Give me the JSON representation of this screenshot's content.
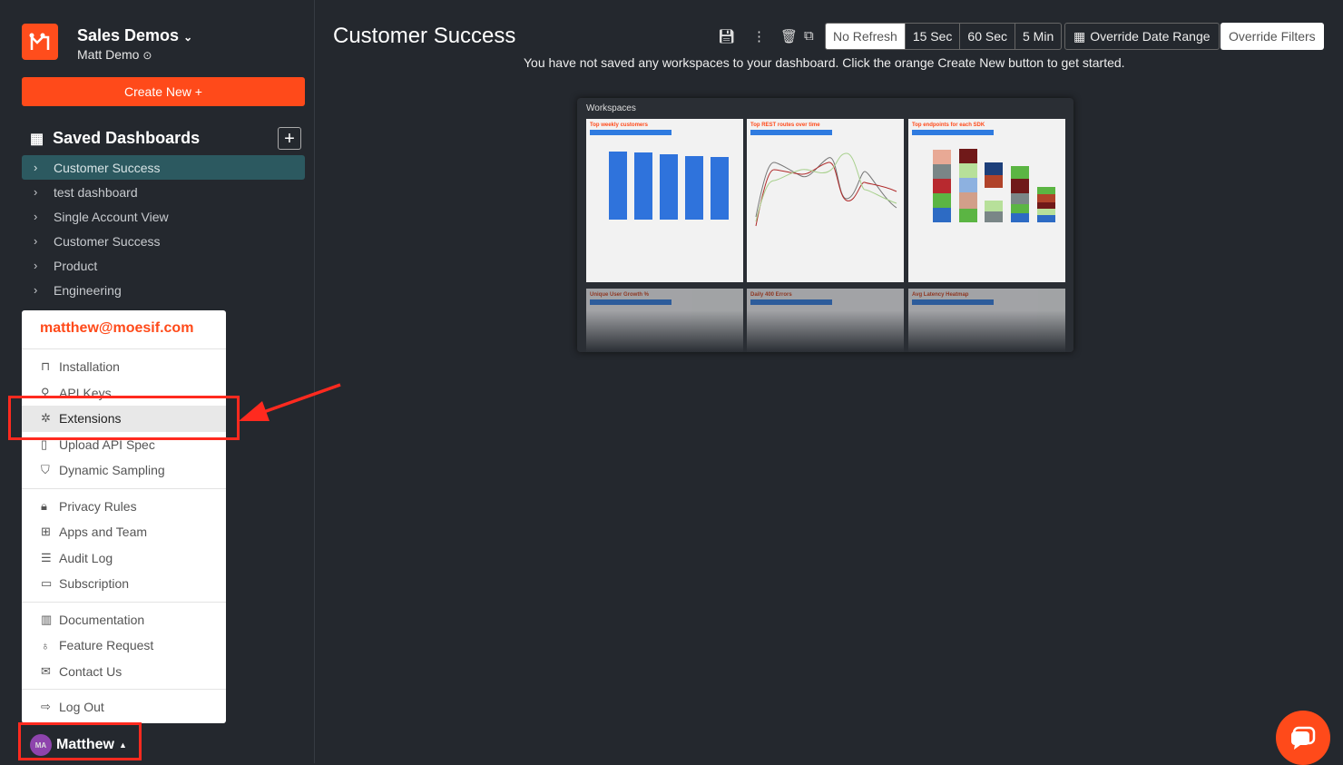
{
  "sidebar": {
    "org": "Sales Demos",
    "user_sub": "Matt Demo",
    "create_new": "Create New +",
    "saved_heading": "Saved Dashboards",
    "dashboards": [
      {
        "label": "Customer Success",
        "active": true
      },
      {
        "label": "test dashboard"
      },
      {
        "label": "Single Account View"
      },
      {
        "label": "Customer Success"
      },
      {
        "label": "Product"
      },
      {
        "label": "Engineering"
      }
    ]
  },
  "menu": {
    "email": "matthew@moesif.com",
    "items": [
      {
        "label": "Installation",
        "icon": "install-icon"
      },
      {
        "label": "API Keys",
        "icon": "key-icon"
      },
      {
        "label": "Extensions",
        "icon": "puzzle-icon",
        "highlighted": true
      },
      {
        "label": "Upload API Spec",
        "icon": "file-search-icon"
      },
      {
        "label": "Dynamic Sampling",
        "icon": "filter-icon"
      },
      {
        "label": "Privacy Rules",
        "icon": "lock-icon"
      },
      {
        "label": "Apps and Team",
        "icon": "sitemap-icon"
      },
      {
        "label": "Audit Log",
        "icon": "list-icon"
      },
      {
        "label": "Subscription",
        "icon": "credit-card-icon"
      },
      {
        "label": "Documentation",
        "icon": "book-icon"
      },
      {
        "label": "Feature Request",
        "icon": "lightbulb-icon"
      },
      {
        "label": "Contact Us",
        "icon": "mail-icon"
      },
      {
        "label": "Log Out",
        "icon": "logout-icon"
      }
    ]
  },
  "user": {
    "initials": "MA",
    "name": "Matthew"
  },
  "header": {
    "title": "Customer Success",
    "refresh": [
      "No Refresh",
      "15 Sec",
      "60 Sec",
      "5 Min"
    ],
    "selected_refresh": "No Refresh",
    "override_date": "Override Date Range",
    "override_filters": "Override Filters",
    "message": "You have not saved any workspaces to your dashboard. Click the orange Create New button to get started."
  },
  "preview": {
    "title": "Workspaces",
    "cards": [
      "Top weekly customers",
      "Top REST routes over time",
      "Top endpoints for each SDK",
      "Unique User Growth %",
      "Daily 400 Errors",
      "Avg Latency Heatmap"
    ]
  },
  "colors": {
    "accent": "#ff4a1a",
    "active_item": "#2c5960",
    "annotation": "#ff2a1f"
  }
}
